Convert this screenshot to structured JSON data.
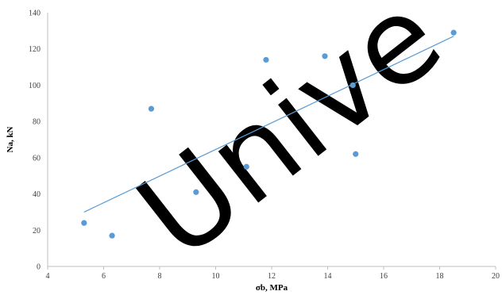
{
  "chart_data": {
    "type": "scatter",
    "title": "",
    "xlabel": "σb, MPa",
    "ylabel": "Na, kN",
    "xlim": [
      4,
      20
    ],
    "ylim": [
      0,
      140
    ],
    "x_ticks": [
      4,
      6,
      8,
      10,
      12,
      14,
      16,
      18,
      20
    ],
    "y_ticks": [
      0,
      20,
      40,
      60,
      80,
      100,
      120,
      140
    ],
    "grid": false,
    "legend": "none",
    "series": [
      {
        "points": [
          {
            "x": 5.3,
            "y": 24
          },
          {
            "x": 6.3,
            "y": 17
          },
          {
            "x": 7.7,
            "y": 87
          },
          {
            "x": 9.3,
            "y": 41
          },
          {
            "x": 11.1,
            "y": 55
          },
          {
            "x": 11.8,
            "y": 114
          },
          {
            "x": 13.9,
            "y": 116
          },
          {
            "x": 14.9,
            "y": 100
          },
          {
            "x": 15.0,
            "y": 62
          },
          {
            "x": 18.5,
            "y": 129
          }
        ],
        "color": "#5b9bd5"
      }
    ],
    "trendline": {
      "type": "linear",
      "from": {
        "x": 5.3,
        "y": 30
      },
      "to": {
        "x": 18.5,
        "y": 127
      },
      "color": "#5b9bd5"
    },
    "watermark": {
      "text": "Unive"
    }
  }
}
